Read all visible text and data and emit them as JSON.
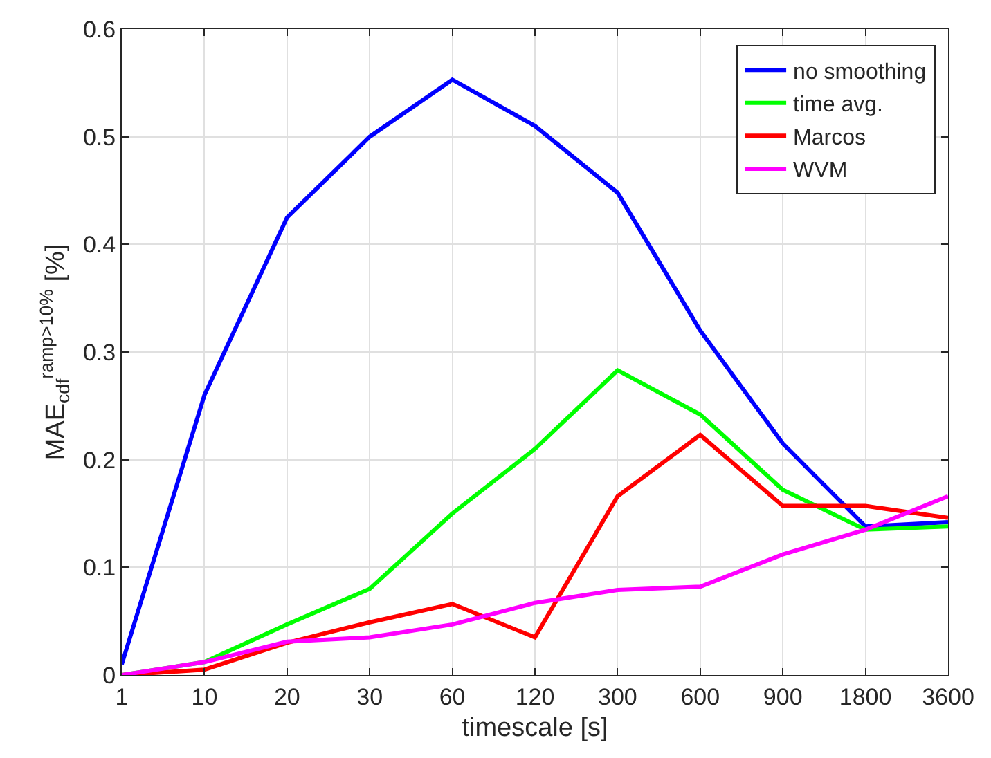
{
  "chart_data": {
    "type": "line",
    "xlabel": "timescale [s]",
    "ylabel": "MAE$_{cdf}$$^{ramp>10%}$ [%]",
    "categories": [
      "1",
      "10",
      "20",
      "30",
      "60",
      "120",
      "300",
      "600",
      "900",
      "1800",
      "3600"
    ],
    "series": [
      {
        "name": "no smoothing",
        "color": "#0000ff",
        "values": [
          0.01,
          0.26,
          0.425,
          0.5,
          0.553,
          0.51,
          0.448,
          0.32,
          0.215,
          0.138,
          0.142
        ]
      },
      {
        "name": "time avg.",
        "color": "#00ff00",
        "values": [
          0,
          0.012,
          0.047,
          0.08,
          0.15,
          0.21,
          0.283,
          0.242,
          0.172,
          0.135,
          0.138
        ]
      },
      {
        "name": "Marcos",
        "color": "#ff0000",
        "values": [
          0,
          0.005,
          0.03,
          0.049,
          0.066,
          0.035,
          0.166,
          0.223,
          0.157,
          0.157,
          0.146
        ]
      },
      {
        "name": "WVM",
        "color": "#ff00ff",
        "values": [
          0,
          0.012,
          0.031,
          0.035,
          0.047,
          0.067,
          0.079,
          0.082,
          0.112,
          0.135,
          0.166
        ]
      }
    ],
    "ylim": [
      0,
      0.6
    ],
    "yticks": [
      0,
      0.1,
      0.2,
      0.3,
      0.4,
      0.5,
      0.6
    ],
    "grid": true,
    "legend": "top right",
    "line_style": "solid",
    "marker": "none"
  }
}
